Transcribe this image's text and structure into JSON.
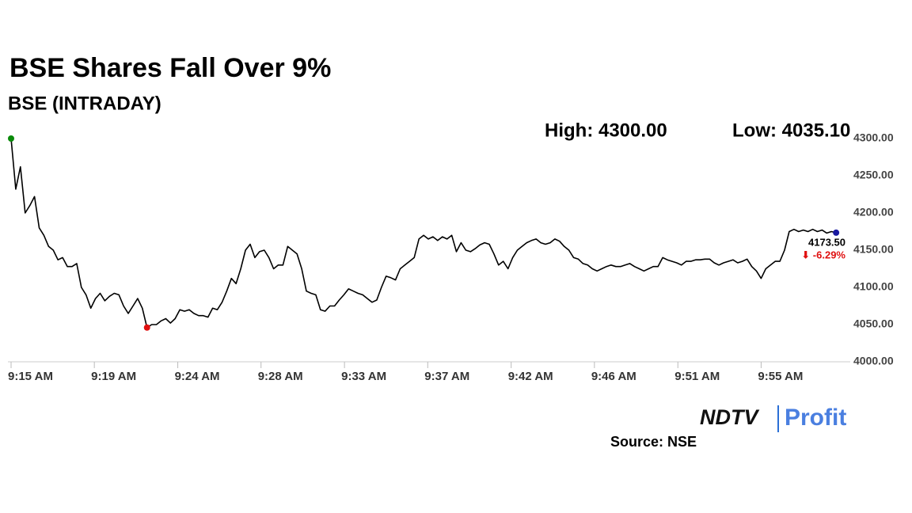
{
  "chart_data": {
    "type": "line",
    "title": "BSE Shares Fall Over 9%",
    "subtitle": "BSE (INTRADAY)",
    "high_label": "High: 4300.00",
    "low_label": "Low: 4035.10",
    "last_value_label": "4173.50",
    "change_label": "⬇ -6.29%",
    "source": "Source: NSE",
    "logo": {
      "brand": "NDTV",
      "product": "Profit"
    },
    "color": "#000000",
    "start_marker_color": "#0a8a0a",
    "low_marker_color": "#e01010",
    "end_marker_color": "#1a1aa0",
    "change_color": "#e01010",
    "xlim": [
      555,
      599.5
    ],
    "xticks": [
      {
        "value": 555,
        "label": "9:15 AM"
      },
      {
        "value": 559.44,
        "label": "9:19 AM"
      },
      {
        "value": 563.89,
        "label": "9:24 AM"
      },
      {
        "value": 568.33,
        "label": "9:28 AM"
      },
      {
        "value": 572.78,
        "label": "9:33 AM"
      },
      {
        "value": 577.22,
        "label": "9:37 AM"
      },
      {
        "value": 581.67,
        "label": "9:42 AM"
      },
      {
        "value": 586.11,
        "label": "9:46 AM"
      },
      {
        "value": 590.56,
        "label": "9:51 AM"
      },
      {
        "value": 595,
        "label": "9:55 AM"
      }
    ],
    "ylim": [
      4000,
      4300
    ],
    "yticks": [
      {
        "value": 4000,
        "label": "4000.00"
      },
      {
        "value": 4050,
        "label": "4050.00"
      },
      {
        "value": 4100,
        "label": "4100.00"
      },
      {
        "value": 4150,
        "label": "4150.00"
      },
      {
        "value": 4200,
        "label": "4200.00"
      },
      {
        "value": 4250,
        "label": "4250.00"
      },
      {
        "value": 4300,
        "label": "4300.00"
      }
    ],
    "x": [
      555,
      555.25,
      555.5,
      555.75,
      556,
      556.25,
      556.5,
      556.75,
      557,
      557.25,
      557.5,
      557.75,
      558,
      558.25,
      558.5,
      558.75,
      559,
      559.25,
      559.5,
      559.75,
      560,
      560.25,
      560.5,
      560.75,
      561,
      561.25,
      561.5,
      561.75,
      562,
      562.25,
      562.5,
      562.75,
      563,
      563.25,
      563.5,
      563.75,
      564,
      564.25,
      564.5,
      564.75,
      565,
      565.25,
      565.5,
      565.75,
      566,
      566.25,
      566.5,
      566.75,
      567,
      567.25,
      567.5,
      567.75,
      568,
      568.25,
      568.5,
      568.75,
      569,
      569.25,
      569.5,
      569.75,
      570,
      570.25,
      570.5,
      570.75,
      571,
      571.25,
      571.5,
      571.75,
      572,
      572.25,
      572.5,
      572.75,
      573,
      573.25,
      573.5,
      573.75,
      574,
      574.25,
      574.5,
      574.75,
      575,
      575.25,
      575.5,
      575.75,
      576,
      576.25,
      576.5,
      576.75,
      577,
      577.25,
      577.5,
      577.75,
      578,
      578.25,
      578.5,
      578.75,
      579,
      579.25,
      579.5,
      579.75,
      580,
      580.25,
      580.5,
      580.75,
      581,
      581.25,
      581.5,
      581.75,
      582,
      582.25,
      582.5,
      582.75,
      583,
      583.25,
      583.5,
      583.75,
      584,
      584.25,
      584.5,
      584.75,
      585,
      585.25,
      585.5,
      585.75,
      586,
      586.25,
      586.5,
      586.75,
      587,
      587.25,
      587.5,
      587.75,
      588,
      588.25,
      588.5,
      588.75,
      589,
      589.25,
      589.5,
      589.75,
      590,
      590.25,
      590.5,
      590.75,
      591,
      591.25,
      591.5,
      591.75,
      592,
      592.25,
      592.5,
      592.75,
      593,
      593.25,
      593.5,
      593.75,
      594,
      594.25,
      594.5,
      594.75,
      595,
      595.25,
      595.5,
      595.75,
      596,
      596.25,
      596.5,
      596.75,
      597,
      597.25,
      597.5,
      597.75,
      598,
      598.25,
      598.5,
      598.75,
      599
    ],
    "values": [
      4300,
      4232,
      4262,
      4200,
      4210,
      4222,
      4180,
      4170,
      4155,
      4150,
      4137,
      4140,
      4128,
      4128,
      4132,
      4100,
      4090,
      4072,
      4085,
      4092,
      4082,
      4088,
      4092,
      4090,
      4075,
      4065,
      4075,
      4085,
      4072,
      4046,
      4050,
      4050,
      4055,
      4058,
      4052,
      4058,
      4070,
      4068,
      4070,
      4065,
      4062,
      4062,
      4060,
      4072,
      4070,
      4080,
      4095,
      4112,
      4105,
      4125,
      4150,
      4158,
      4140,
      4148,
      4150,
      4140,
      4125,
      4130,
      4130,
      4155,
      4150,
      4145,
      4125,
      4095,
      4092,
      4090,
      4070,
      4068,
      4075,
      4075,
      4083,
      4090,
      4098,
      4095,
      4092,
      4090,
      4085,
      4080,
      4083,
      4100,
      4115,
      4113,
      4110,
      4125,
      4130,
      4135,
      4140,
      4165,
      4170,
      4165,
      4168,
      4163,
      4168,
      4165,
      4170,
      4148,
      4160,
      4150,
      4148,
      4152,
      4157,
      4160,
      4158,
      4145,
      4130,
      4135,
      4125,
      4140,
      4150,
      4155,
      4160,
      4163,
      4165,
      4160,
      4158,
      4160,
      4165,
      4162,
      4155,
      4150,
      4140,
      4138,
      4132,
      4130,
      4125,
      4122,
      4125,
      4128,
      4130,
      4128,
      4128,
      4130,
      4132,
      4128,
      4125,
      4122,
      4125,
      4128,
      4128,
      4140,
      4137,
      4135,
      4133,
      4130,
      4135,
      4135,
      4137,
      4137,
      4138,
      4138,
      4133,
      4130,
      4133,
      4135,
      4137,
      4133,
      4135,
      4138,
      4128,
      4122,
      4112,
      4125,
      4130,
      4135,
      4135,
      4150,
      4175,
      4178,
      4175,
      4177,
      4175,
      4178,
      4175,
      4177,
      4173,
      4175,
      4173.5
    ]
  }
}
